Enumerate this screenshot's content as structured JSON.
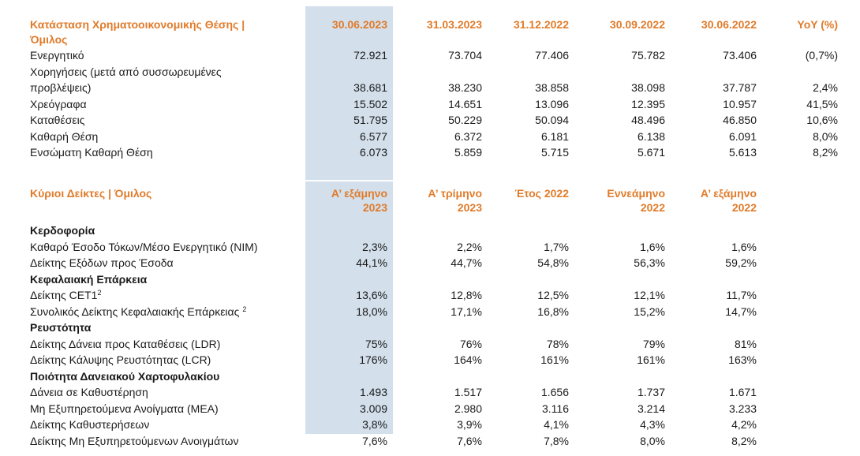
{
  "balance": {
    "title": "Κατάσταση Χρηματοοικονομικής Θέσης | Όμιλος",
    "columns": [
      "30.06.2023",
      "31.03.2023",
      "31.12.2022",
      "30.09.2022",
      "30.06.2022",
      "YoY (%)"
    ],
    "rows": [
      {
        "label": "Ενεργητικό",
        "values": [
          "72.921",
          "73.704",
          "77.406",
          "75.782",
          "73.406",
          "(0,7%)"
        ]
      },
      {
        "label": "Χορηγήσεις (μετά από συσσωρευμένες προβλέψεις)",
        "values": [
          "38.681",
          "38.230",
          "38.858",
          "38.098",
          "37.787",
          "2,4%"
        ]
      },
      {
        "label": "Χρεόγραφα",
        "values": [
          "15.502",
          "14.651",
          "13.096",
          "12.395",
          "10.957",
          "41,5%"
        ]
      },
      {
        "label": "Καταθέσεις",
        "values": [
          "51.795",
          "50.229",
          "50.094",
          "48.496",
          "46.850",
          "10,6%"
        ]
      },
      {
        "label": "Καθαρή Θέση",
        "values": [
          "6.577",
          "6.372",
          "6.181",
          "6.138",
          "6.091",
          "8,0%"
        ]
      },
      {
        "label": "Ενσώματη Καθαρή Θέση",
        "values": [
          "6.073",
          "5.859",
          "5.715",
          "5.671",
          "5.613",
          "8,2%"
        ]
      }
    ]
  },
  "indicators": {
    "title": "Κύριοι Δείκτες | Όμιλος",
    "columns": [
      {
        "line1": "Α’ εξάμηνο",
        "line2": "2023"
      },
      {
        "line1": "Α’ τρίμηνο",
        "line2": "2023"
      },
      {
        "line1": "Έτος 2022",
        "line2": ""
      },
      {
        "line1": "Εννεάμηνο",
        "line2": "2022"
      },
      {
        "line1": "Α’ εξάμηνο",
        "line2": "2022"
      }
    ],
    "sections": [
      {
        "title": "Κερδοφορία",
        "rows": [
          {
            "label": "Καθαρό Έσοδο Τόκων/Μέσο Ενεργητικό (NIM)",
            "sup": "",
            "values": [
              "2,3%",
              "2,2%",
              "1,7%",
              "1,6%",
              "1,6%"
            ]
          },
          {
            "label": "Δείκτης Εξόδων προς Έσοδα",
            "sup": "",
            "values": [
              "44,1%",
              "44,7%",
              "54,8%",
              "56,3%",
              "59,2%"
            ]
          }
        ]
      },
      {
        "title": "Κεφαλαιακή Επάρκεια",
        "rows": [
          {
            "label": "Δείκτης CET1",
            "sup": "2",
            "values": [
              "13,6%",
              "12,8%",
              "12,5%",
              "12,1%",
              "11,7%"
            ]
          },
          {
            "label": "Συνολικός Δείκτης Κεφαλαιακής Επάρκειας",
            "sup": "2",
            "values": [
              "18,0%",
              "17,1%",
              "16,8%",
              "15,2%",
              "14,7%"
            ]
          }
        ]
      },
      {
        "title": "Ρευστότητα",
        "rows": [
          {
            "label": "Δείκτης Δάνεια προς Καταθέσεις (LDR)",
            "sup": "",
            "values": [
              "75%",
              "76%",
              "78%",
              "79%",
              "81%"
            ]
          },
          {
            "label": "Δείκτης Κάλυψης Ρευστότητας (LCR)",
            "sup": "",
            "values": [
              "176%",
              "164%",
              "161%",
              "161%",
              "163%"
            ]
          }
        ]
      },
      {
        "title": "Ποιότητα Δανειακού Χαρτοφυλακίου",
        "rows": [
          {
            "label": "Δάνεια σε Καθυστέρηση",
            "sup": "",
            "values": [
              "1.493",
              "1.517",
              "1.656",
              "1.737",
              "1.671"
            ]
          },
          {
            "label": "Μη Εξυπηρετούμενα Ανοίγματα (ΜΕΑ)",
            "sup": "",
            "values": [
              "3.009",
              "2.980",
              "3.116",
              "3.214",
              "3.233"
            ]
          },
          {
            "label": "Δείκτης Καθυστερήσεων",
            "sup": "",
            "values": [
              "3,8%",
              "3,9%",
              "4,1%",
              "4,3%",
              "4,2%"
            ]
          },
          {
            "label": "Δείκτης Μη Εξυπηρετούμενων Ανοιγμάτων",
            "sup": "",
            "values": [
              "7,6%",
              "7,6%",
              "7,8%",
              "8,0%",
              "8,2%"
            ]
          }
        ]
      }
    ]
  },
  "colors": {
    "accent": "#e07b2a",
    "highlight": "#d3dfeb"
  }
}
